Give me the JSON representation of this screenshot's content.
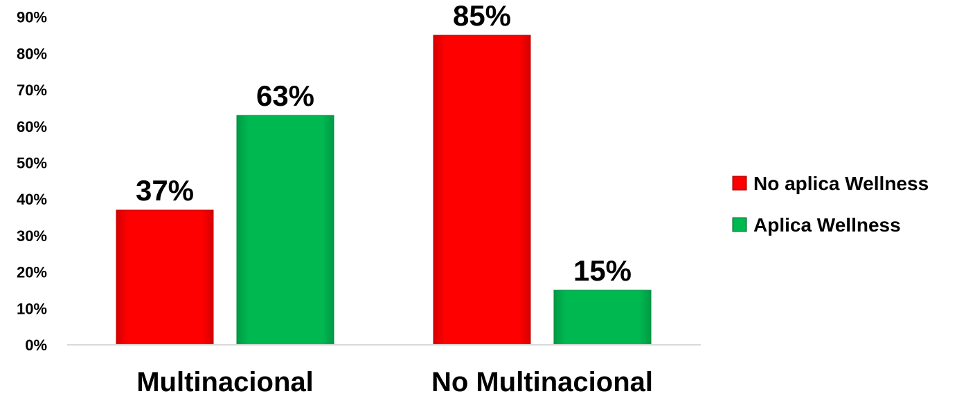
{
  "chart_data": {
    "type": "bar",
    "categories": [
      "Multinacional",
      "No Multinacional"
    ],
    "series": [
      {
        "name": "No aplica Wellness",
        "values": [
          37,
          85
        ],
        "color": "#ff0000",
        "data_labels": [
          "37%",
          "85%"
        ]
      },
      {
        "name": "Aplica Wellness",
        "values": [
          63,
          15
        ],
        "color": "#00b050",
        "data_labels": [
          "63%",
          "15%"
        ]
      }
    ],
    "y_ticks": [
      0,
      10,
      20,
      30,
      40,
      50,
      60,
      70,
      80,
      90
    ],
    "y_tick_labels": [
      "0%",
      "10%",
      "20%",
      "30%",
      "40%",
      "50%",
      "60%",
      "70%",
      "80%",
      "90%"
    ],
    "ylim": [
      0,
      90
    ],
    "grid": false,
    "legend_position": "right"
  }
}
